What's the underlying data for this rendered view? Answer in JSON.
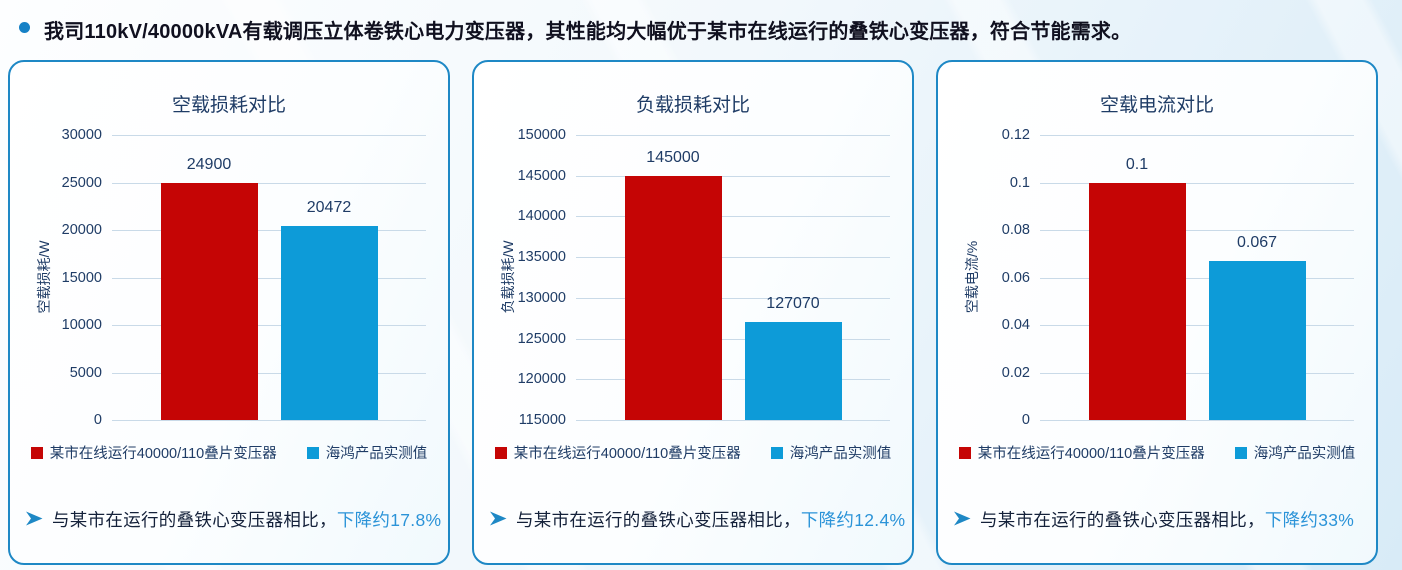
{
  "colors": {
    "series1": "#C50505",
    "series2": "#0D9BD8",
    "card_border": "#1E88C5",
    "navy": "#1F3C66",
    "accent": "#1581C6",
    "accent_light": "#2B93D8",
    "gridline": "#C9DAE8"
  },
  "header": {
    "text": "我司110kV/40000kVA有载调压立体卷铁心电力变压器，其性能均大幅优于某市在线运行的叠铁心变压器，符合节能需求。"
  },
  "legend": {
    "series1_label": "某市在线运行40000/110叠片变压器",
    "series2_label": "海鸿产品实测值"
  },
  "chart_data": [
    {
      "type": "bar",
      "title": "空载损耗对比",
      "ylabel": "空载损耗/W",
      "categories": [
        "某市在线运行40000/110叠片变压器",
        "海鸿产品实测值"
      ],
      "values": [
        24900,
        20472
      ],
      "value_labels": [
        "24900",
        "20472"
      ],
      "ylim": [
        0,
        30000
      ],
      "ytick_values": [
        30000,
        25000,
        20000,
        15000,
        10000,
        5000,
        0
      ],
      "ytick_labels": [
        "30000",
        "25000",
        "20000",
        "15000",
        "10000",
        "5000",
        "0"
      ],
      "grid": true,
      "legend_position": "bottom",
      "note_prefix": "与某市在运行的叠铁心变压器相比，",
      "note_highlight": "下降约17.8%"
    },
    {
      "type": "bar",
      "title": "负载损耗对比",
      "ylabel": "负载损耗/W",
      "categories": [
        "某市在线运行40000/110叠片变压器",
        "海鸿产品实测值"
      ],
      "values": [
        145000,
        127070
      ],
      "value_labels": [
        "145000",
        "127070"
      ],
      "ylim": [
        115000,
        150000
      ],
      "ytick_values": [
        150000,
        145000,
        140000,
        135000,
        130000,
        125000,
        120000,
        115000
      ],
      "ytick_labels": [
        "150000",
        "145000",
        "140000",
        "135000",
        "130000",
        "125000",
        "120000",
        "115000"
      ],
      "grid": true,
      "legend_position": "bottom",
      "note_prefix": "与某市在运行的叠铁心变压器相比，",
      "note_highlight": "下降约12.4%"
    },
    {
      "type": "bar",
      "title": "空载电流对比",
      "ylabel": "空载电流/%",
      "categories": [
        "某市在线运行40000/110叠片变压器",
        "海鸿产品实测值"
      ],
      "values": [
        0.1,
        0.067
      ],
      "value_labels": [
        "0.1",
        "0.067"
      ],
      "ylim": [
        0,
        0.12
      ],
      "ytick_values": [
        0.12,
        0.1,
        0.08,
        0.06,
        0.04,
        0.02,
        0
      ],
      "ytick_labels": [
        "0.12",
        "0.1",
        "0.08",
        "0.06",
        "0.04",
        "0.02",
        "0"
      ],
      "grid": true,
      "legend_position": "bottom",
      "note_prefix": "与某市在运行的叠铁心变压器相比，",
      "note_highlight": "下降约33%"
    }
  ]
}
